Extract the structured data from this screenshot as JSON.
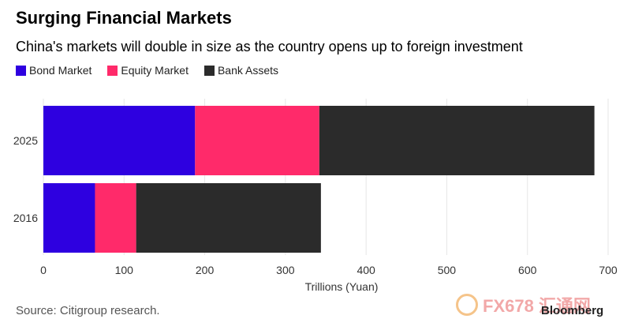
{
  "title": "Surging Financial Markets",
  "subtitle": "China's markets will double in size as the country opens up to foreign investment",
  "source": "Source: Citigroup research.",
  "brand": "Bloomberg",
  "watermark": "FX678 汇通网",
  "chart_data": {
    "type": "bar",
    "orientation": "horizontal",
    "stacked": true,
    "categories": [
      "2025",
      "2016"
    ],
    "series": [
      {
        "name": "Bond Market",
        "color": "#2e00e0",
        "values": [
          188,
          64
        ]
      },
      {
        "name": "Equity Market",
        "color": "#ff2a6a",
        "values": [
          154,
          51
        ]
      },
      {
        "name": "Bank Assets",
        "color": "#2b2b2b",
        "values": [
          341,
          229
        ]
      }
    ],
    "xlabel": "Trillions (Yuan)",
    "ylabel": "",
    "xlim": [
      0,
      700
    ],
    "xticks": [
      0,
      100,
      200,
      300,
      400,
      500,
      600,
      700
    ],
    "grid": true,
    "legend": "top-left"
  }
}
